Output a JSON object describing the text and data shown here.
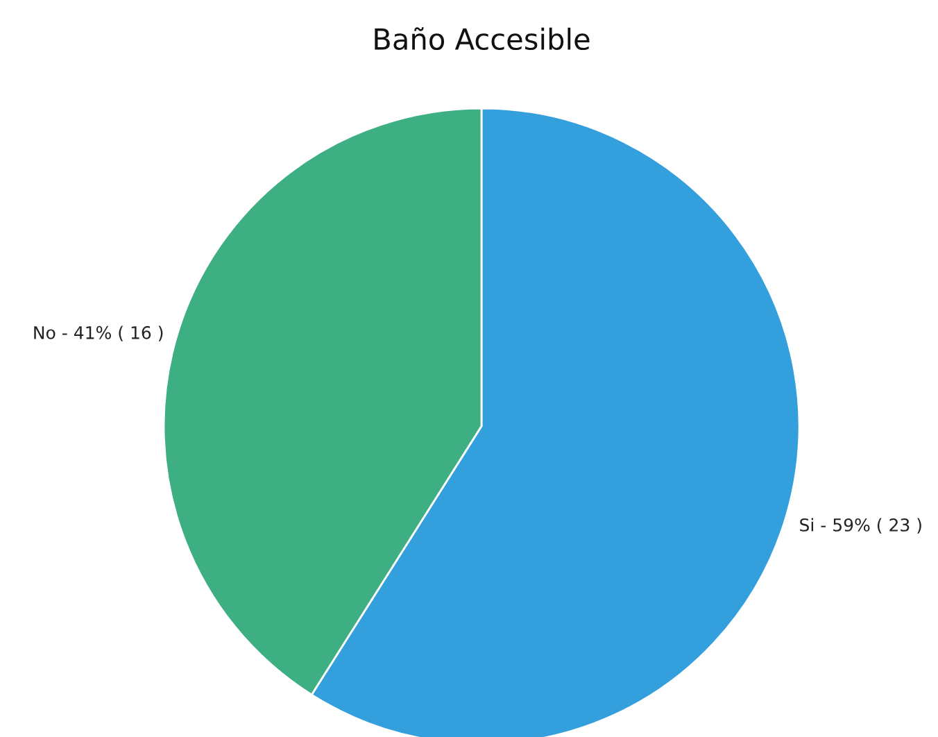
{
  "chart_data": {
    "type": "pie",
    "title": "Baño Accesible",
    "categories": [
      "Si",
      "No"
    ],
    "values": [
      23,
      16
    ],
    "colors": [
      "#33a0dd",
      "#3daf83"
    ],
    "value_labels": [
      "59% ( 23 )",
      "41% ( 16 )"
    ]
  }
}
